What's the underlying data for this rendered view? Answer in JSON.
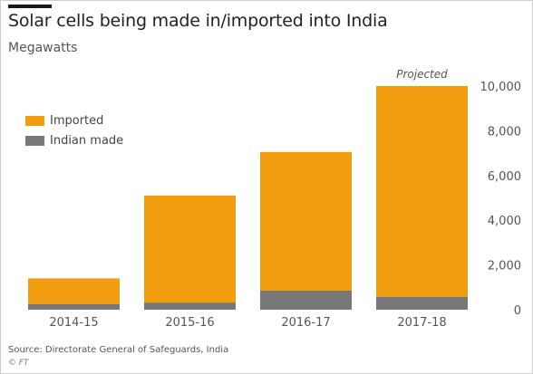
{
  "title": "Solar cells being made in/imported into India",
  "subtitle": "Megawatts",
  "source": "Source: Directorate General of Safeguards, India",
  "credit": "© FT",
  "colors": {
    "imported": "#F29C10",
    "indian_made": "#777777",
    "axis_text": "#555555",
    "annotation": "#555555"
  },
  "chart_data": {
    "type": "bar",
    "stacked": true,
    "categories": [
      "2014-15",
      "2015-16",
      "2016-17",
      "2017-18"
    ],
    "series": [
      {
        "name": "Indian made",
        "values": [
          250,
          320,
          850,
          580
        ]
      },
      {
        "name": "Imported",
        "values": [
          1150,
          4780,
          6200,
          9420
        ]
      }
    ],
    "totals": [
      1400,
      5100,
      7050,
      10000
    ],
    "annotations": [
      {
        "category": "2017-18",
        "text": "Projected"
      }
    ],
    "ylim": [
      0,
      10000
    ],
    "yticks": [
      0,
      2000,
      4000,
      6000,
      8000,
      10000
    ],
    "ytick_labels": [
      "0",
      "2,000",
      "4,000",
      "6,000",
      "8,000",
      "10,000"
    ],
    "y_axis_side": "right",
    "grid": false,
    "legend_position": "top-left"
  }
}
